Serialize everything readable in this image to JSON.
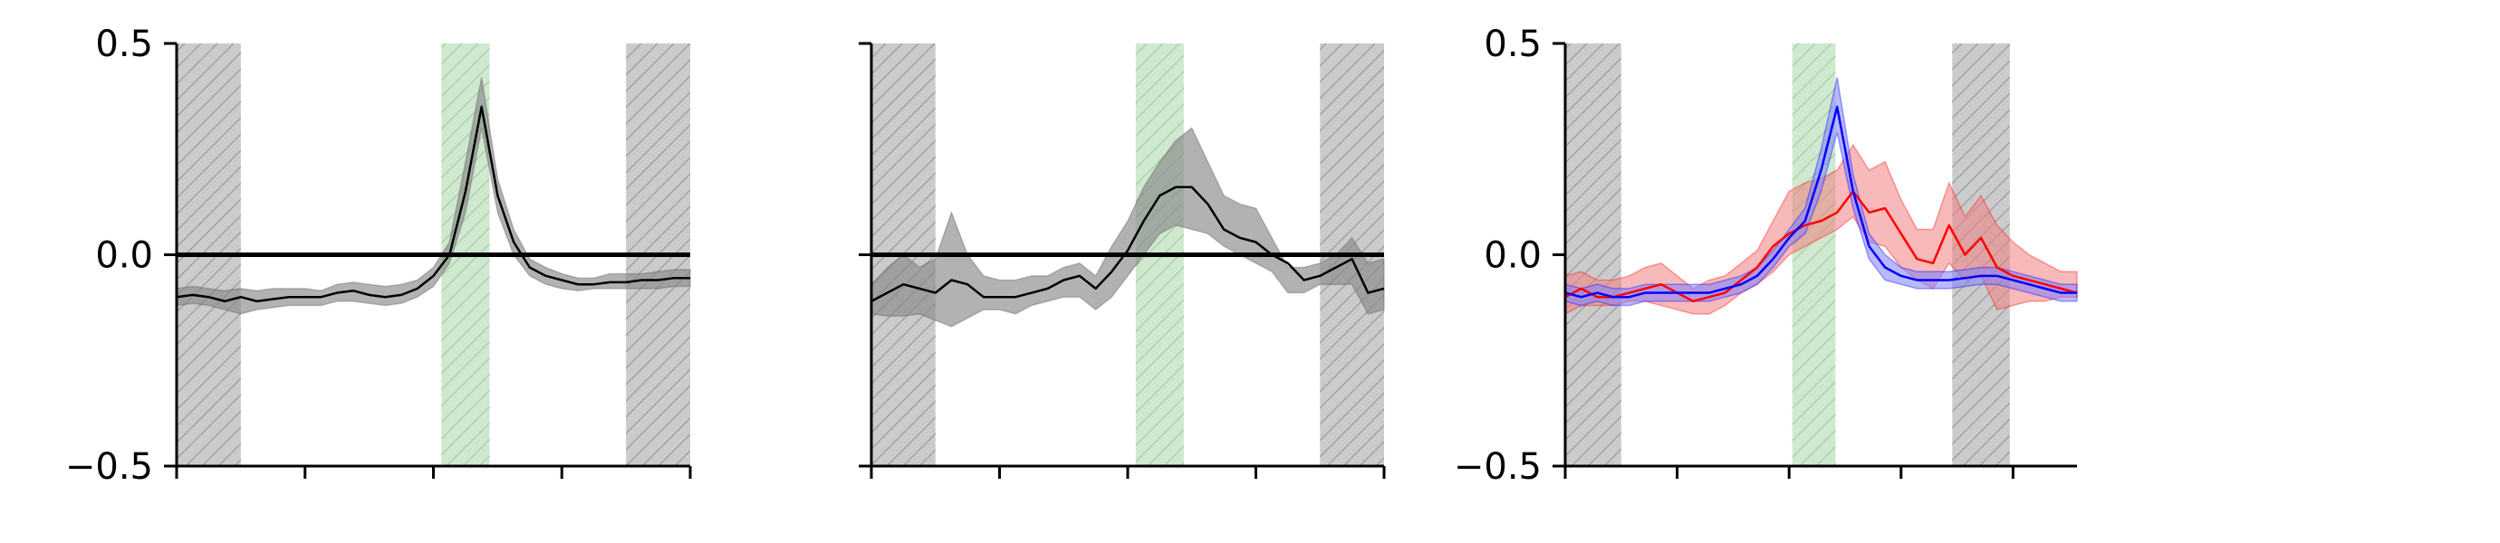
{
  "colors": {
    "axis": "#000000",
    "shade_gray": "#c8c8c8",
    "shade_green": "#bfe0bf",
    "hatch_gray": "#9a9a9a",
    "hatch_green": "#a3d0a3",
    "band_black": "#888888",
    "line_black": "#000000",
    "line_red": "#ff0000",
    "band_red": "#f08080",
    "line_blue": "#0000ff",
    "band_blue": "#7f7fff"
  },
  "chart_data": [
    {
      "type": "line",
      "x": [
        0,
        1,
        2,
        3,
        4,
        5,
        6,
        7,
        8,
        9,
        10,
        11,
        12,
        13,
        14,
        15,
        16,
        17,
        18,
        19,
        20,
        21,
        22,
        23,
        24,
        25,
        26,
        27,
        28,
        29,
        30,
        31,
        32
      ],
      "ylim": [
        -0.5,
        0.5
      ],
      "xlim": [
        0,
        32
      ],
      "yticks": [
        "0.5",
        "0.0",
        "−0.5"
      ],
      "ytick_values": [
        0.5,
        0.0,
        -0.5
      ],
      "xtick_values": [
        0,
        8,
        16,
        24,
        32
      ],
      "hline": 0.0,
      "shaded_regions": [
        {
          "x0": 0,
          "x1": 4,
          "color": "gray"
        },
        {
          "x0": 16.5,
          "x1": 19.5,
          "color": "green"
        },
        {
          "x0": 28,
          "x1": 32,
          "color": "gray"
        }
      ],
      "series": [
        {
          "color": "black",
          "y": [
            -0.1,
            -0.095,
            -0.1,
            -0.11,
            -0.1,
            -0.11,
            -0.105,
            -0.1,
            -0.1,
            -0.1,
            -0.09,
            -0.085,
            -0.095,
            -0.1,
            -0.095,
            -0.08,
            -0.05,
            0.0,
            0.15,
            0.35,
            0.14,
            0.03,
            -0.03,
            -0.05,
            -0.06,
            -0.07,
            -0.07,
            -0.065,
            -0.065,
            -0.06,
            -0.06,
            -0.055,
            -0.055
          ],
          "lower": [
            -0.12,
            -0.115,
            -0.12,
            -0.13,
            -0.14,
            -0.13,
            -0.125,
            -0.12,
            -0.12,
            -0.12,
            -0.11,
            -0.11,
            -0.115,
            -0.12,
            -0.115,
            -0.1,
            -0.075,
            -0.02,
            0.1,
            0.3,
            0.1,
            0.0,
            -0.05,
            -0.07,
            -0.08,
            -0.085,
            -0.08,
            -0.08,
            -0.08,
            -0.08,
            -0.08,
            -0.075,
            -0.075
          ],
          "upper": [
            -0.08,
            -0.075,
            -0.08,
            -0.085,
            -0.08,
            -0.085,
            -0.08,
            -0.08,
            -0.08,
            -0.085,
            -0.07,
            -0.065,
            -0.07,
            -0.075,
            -0.07,
            -0.06,
            -0.03,
            0.03,
            0.22,
            0.42,
            0.18,
            0.06,
            -0.01,
            -0.03,
            -0.045,
            -0.055,
            -0.055,
            -0.045,
            -0.045,
            -0.045,
            -0.04,
            -0.035,
            -0.035
          ]
        }
      ]
    },
    {
      "type": "line",
      "x": [
        0,
        1,
        2,
        3,
        4,
        5,
        6,
        7,
        8,
        9,
        10,
        11,
        12,
        13,
        14,
        15,
        16,
        17,
        18,
        19,
        20,
        21,
        22,
        23,
        24,
        25,
        26,
        27,
        28,
        29,
        30,
        31,
        32
      ],
      "ylim": [
        -0.5,
        0.5
      ],
      "xlim": [
        0,
        32
      ],
      "yticks": [],
      "ytick_values": [
        0.5,
        0.0,
        -0.5
      ],
      "xtick_values": [
        0,
        8,
        16,
        24,
        32
      ],
      "hline": 0.0,
      "shaded_regions": [
        {
          "x0": 0,
          "x1": 4,
          "color": "gray"
        },
        {
          "x0": 16.5,
          "x1": 19.5,
          "color": "green"
        },
        {
          "x0": 28,
          "x1": 32,
          "color": "gray"
        }
      ],
      "series": [
        {
          "color": "black",
          "y": [
            -0.11,
            -0.09,
            -0.07,
            -0.08,
            -0.09,
            -0.06,
            -0.07,
            -0.1,
            -0.1,
            -0.1,
            -0.09,
            -0.08,
            -0.06,
            -0.05,
            -0.08,
            -0.04,
            0.01,
            0.08,
            0.14,
            0.16,
            0.16,
            0.12,
            0.06,
            0.04,
            0.03,
            0.0,
            -0.02,
            -0.06,
            -0.05,
            -0.03,
            -0.01,
            -0.09,
            -0.08
          ],
          "lower": [
            -0.14,
            -0.145,
            -0.145,
            -0.14,
            -0.155,
            -0.17,
            -0.15,
            -0.13,
            -0.13,
            -0.14,
            -0.12,
            -0.11,
            -0.1,
            -0.1,
            -0.13,
            -0.1,
            -0.05,
            0.0,
            0.05,
            0.07,
            0.06,
            0.05,
            0.02,
            0.0,
            -0.02,
            -0.04,
            -0.09,
            -0.09,
            -0.07,
            -0.07,
            -0.07,
            -0.14,
            -0.13
          ],
          "upper": [
            -0.07,
            -0.03,
            0.0,
            -0.03,
            -0.01,
            0.1,
            0.0,
            -0.05,
            -0.06,
            -0.06,
            -0.05,
            -0.05,
            -0.03,
            -0.02,
            -0.05,
            0.02,
            0.08,
            0.16,
            0.22,
            0.27,
            0.3,
            0.22,
            0.14,
            0.12,
            0.11,
            0.04,
            -0.03,
            -0.03,
            -0.02,
            0.0,
            0.04,
            -0.02,
            -0.01
          ]
        }
      ]
    },
    {
      "type": "line",
      "x": [
        0,
        1,
        2,
        3,
        4,
        5,
        6,
        7,
        8,
        9,
        10,
        11,
        12,
        13,
        14,
        15,
        16,
        17,
        18,
        19,
        20,
        21,
        22,
        23,
        24,
        25,
        26,
        27,
        28,
        29,
        30,
        31,
        32
      ],
      "ylim": [
        -0.5,
        0.5
      ],
      "xlim": [
        0,
        32
      ],
      "yticks": [
        "0.5",
        "0.0",
        "−0.5"
      ],
      "ytick_values": [
        0.5,
        0.0,
        -0.5
      ],
      "xtick_values": [
        0,
        7,
        14,
        21,
        28
      ],
      "hline": null,
      "shaded_regions": [
        {
          "x0": 0,
          "x1": 3.5,
          "color": "gray"
        },
        {
          "x0": 14.2,
          "x1": 16.9,
          "color": "green"
        },
        {
          "x0": 24.2,
          "x1": 27.8,
          "color": "gray"
        }
      ],
      "series": [
        {
          "color": "red",
          "y": [
            -0.1,
            -0.08,
            -0.1,
            -0.1,
            -0.09,
            -0.08,
            -0.07,
            -0.09,
            -0.11,
            -0.1,
            -0.09,
            -0.06,
            -0.03,
            0.02,
            0.05,
            0.07,
            0.08,
            0.1,
            0.15,
            0.1,
            0.11,
            0.05,
            -0.01,
            -0.02,
            0.07,
            0.0,
            0.04,
            -0.03,
            -0.05,
            -0.06,
            -0.07,
            -0.08,
            -0.09
          ],
          "lower": [
            -0.14,
            -0.12,
            -0.12,
            -0.12,
            -0.11,
            -0.11,
            -0.12,
            -0.13,
            -0.14,
            -0.14,
            -0.12,
            -0.09,
            -0.07,
            -0.04,
            0.0,
            0.02,
            0.04,
            0.06,
            0.09,
            0.03,
            0.02,
            -0.03,
            -0.06,
            -0.08,
            -0.02,
            -0.06,
            -0.05,
            -0.13,
            -0.12,
            -0.11,
            -0.11,
            -0.1,
            -0.1
          ],
          "upper": [
            -0.05,
            -0.04,
            -0.06,
            -0.06,
            -0.05,
            -0.03,
            -0.02,
            -0.05,
            -0.08,
            -0.06,
            -0.05,
            -0.02,
            0.01,
            0.08,
            0.15,
            0.17,
            0.18,
            0.2,
            0.26,
            0.2,
            0.22,
            0.13,
            0.06,
            0.06,
            0.17,
            0.09,
            0.14,
            0.07,
            0.03,
            0.0,
            -0.02,
            -0.04,
            -0.04
          ]
        },
        {
          "color": "blue",
          "y": [
            -0.09,
            -0.1,
            -0.09,
            -0.1,
            -0.1,
            -0.09,
            -0.09,
            -0.09,
            -0.09,
            -0.09,
            -0.08,
            -0.07,
            -0.05,
            -0.01,
            0.04,
            0.08,
            0.2,
            0.35,
            0.15,
            0.02,
            -0.03,
            -0.05,
            -0.06,
            -0.06,
            -0.06,
            -0.055,
            -0.05,
            -0.05,
            -0.06,
            -0.07,
            -0.08,
            -0.09,
            -0.09
          ],
          "lower": [
            -0.11,
            -0.12,
            -0.11,
            -0.12,
            -0.12,
            -0.11,
            -0.11,
            -0.11,
            -0.11,
            -0.11,
            -0.1,
            -0.09,
            -0.07,
            -0.03,
            0.02,
            0.05,
            0.15,
            0.29,
            0.11,
            -0.01,
            -0.06,
            -0.07,
            -0.08,
            -0.08,
            -0.08,
            -0.075,
            -0.07,
            -0.07,
            -0.08,
            -0.09,
            -0.1,
            -0.11,
            -0.11
          ],
          "upper": [
            -0.07,
            -0.08,
            -0.07,
            -0.08,
            -0.08,
            -0.07,
            -0.07,
            -0.07,
            -0.07,
            -0.07,
            -0.06,
            -0.05,
            -0.03,
            0.01,
            0.06,
            0.11,
            0.25,
            0.42,
            0.19,
            0.05,
            0.0,
            -0.03,
            -0.04,
            -0.04,
            -0.04,
            -0.035,
            -0.03,
            -0.03,
            -0.04,
            -0.05,
            -0.06,
            -0.07,
            -0.07
          ]
        }
      ]
    }
  ]
}
